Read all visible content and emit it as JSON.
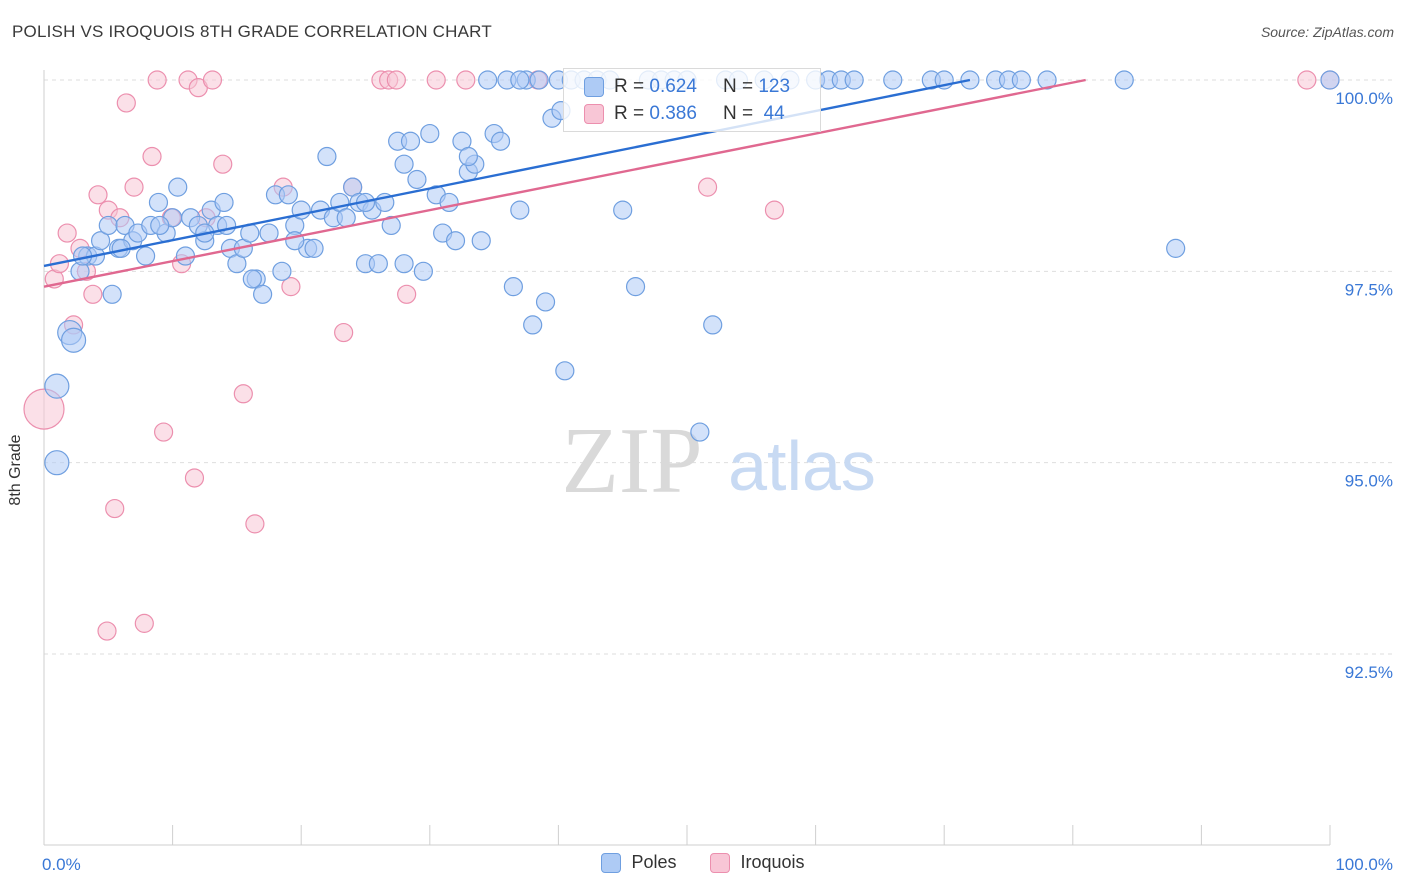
{
  "title": "POLISH VS IROQUOIS 8TH GRADE CORRELATION CHART",
  "source": "Source: ZipAtlas.com",
  "watermark": {
    "zip": "ZIP",
    "atlas": "atlas"
  },
  "stats": {
    "poles": {
      "r_label": "R =",
      "r_value": "0.624",
      "n_label": "N =",
      "n_value": "123"
    },
    "iroquois": {
      "r_label": "R =",
      "r_value": "0.386",
      "n_label": "N =",
      "n_value": "44"
    }
  },
  "chart_data": {
    "type": "scatter",
    "title": "POLISH VS IROQUOIS 8TH GRADE CORRELATION CHART",
    "xlabel": "",
    "ylabel": "8th Grade",
    "xlim": [
      0,
      100
    ],
    "ylim": [
      90.0,
      100.3
    ],
    "x_ticks_labels": [
      "0.0%",
      "100.0%"
    ],
    "y_ticks": [
      92.5,
      95.0,
      97.5,
      100.0
    ],
    "y_tick_labels": [
      "92.5%",
      "95.0%",
      "97.5%",
      "100.0%"
    ],
    "grid": "horizontal dashed",
    "legend_position": "bottom-center",
    "colors": {
      "poles": "#6f9fe0",
      "poles_fill": "#aecbf5",
      "poles_line": "#2a6ed2",
      "iroquois": "#ec8fae",
      "iroquois_fill": "#f8c6d6",
      "iroquois_line": "#e06890"
    },
    "series": [
      {
        "name": "Poles",
        "trend": [
          [
            0,
            97.57
          ],
          [
            72,
            100.0
          ]
        ],
        "points": [
          [
            1.0,
            96.0
          ],
          [
            1.0,
            95.0
          ],
          [
            2.0,
            96.7
          ],
          [
            2.3,
            96.6
          ],
          [
            2.8,
            97.5
          ],
          [
            3.4,
            97.7
          ],
          [
            4.0,
            97.7
          ],
          [
            4.4,
            97.9
          ],
          [
            5.0,
            98.1
          ],
          [
            5.3,
            97.2
          ],
          [
            5.8,
            97.8
          ],
          [
            6.3,
            98.1
          ],
          [
            6.9,
            97.9
          ],
          [
            7.3,
            98.0
          ],
          [
            7.9,
            97.7
          ],
          [
            8.3,
            98.1
          ],
          [
            8.9,
            98.4
          ],
          [
            9.5,
            98.0
          ],
          [
            10.0,
            98.2
          ],
          [
            10.4,
            98.6
          ],
          [
            11.0,
            97.7
          ],
          [
            11.4,
            98.2
          ],
          [
            12.0,
            98.1
          ],
          [
            12.5,
            97.9
          ],
          [
            13.0,
            98.3
          ],
          [
            13.5,
            98.1
          ],
          [
            14.0,
            98.4
          ],
          [
            14.5,
            97.8
          ],
          [
            15.0,
            97.6
          ],
          [
            15.5,
            97.8
          ],
          [
            16.0,
            98.0
          ],
          [
            16.5,
            97.4
          ],
          [
            17.0,
            97.2
          ],
          [
            17.5,
            98.0
          ],
          [
            18.0,
            98.5
          ],
          [
            18.5,
            97.5
          ],
          [
            19.0,
            98.5
          ],
          [
            19.5,
            98.1
          ],
          [
            20.0,
            98.3
          ],
          [
            20.5,
            97.8
          ],
          [
            21.0,
            97.8
          ],
          [
            21.5,
            98.3
          ],
          [
            22.0,
            99.0
          ],
          [
            22.5,
            98.2
          ],
          [
            23.0,
            98.4
          ],
          [
            23.5,
            98.2
          ],
          [
            24.0,
            98.6
          ],
          [
            24.5,
            98.4
          ],
          [
            25.0,
            97.6
          ],
          [
            25.5,
            98.3
          ],
          [
            26.0,
            97.6
          ],
          [
            26.5,
            98.4
          ],
          [
            27.0,
            98.1
          ],
          [
            27.5,
            99.2
          ],
          [
            28.0,
            98.9
          ],
          [
            28.5,
            99.2
          ],
          [
            29.0,
            98.7
          ],
          [
            29.5,
            97.5
          ],
          [
            30.0,
            99.3
          ],
          [
            30.5,
            98.5
          ],
          [
            31.0,
            98.0
          ],
          [
            31.5,
            98.4
          ],
          [
            32.0,
            97.9
          ],
          [
            32.5,
            99.2
          ],
          [
            33.0,
            98.8
          ],
          [
            33.5,
            98.9
          ],
          [
            34.0,
            97.9
          ],
          [
            34.5,
            100.0
          ],
          [
            35.0,
            99.3
          ],
          [
            35.5,
            99.2
          ],
          [
            36.0,
            100.0
          ],
          [
            36.5,
            97.3
          ],
          [
            37.0,
            98.3
          ],
          [
            37.5,
            100.0
          ],
          [
            38.0,
            96.8
          ],
          [
            38.5,
            100.0
          ],
          [
            39.0,
            97.1
          ],
          [
            39.5,
            99.5
          ],
          [
            40.0,
            100.0
          ],
          [
            40.5,
            96.2
          ],
          [
            41.0,
            100.0
          ],
          [
            42.0,
            100.0
          ],
          [
            43.0,
            100.0
          ],
          [
            44.0,
            100.0
          ],
          [
            45.0,
            98.3
          ],
          [
            46.0,
            97.3
          ],
          [
            47.0,
            100.0
          ],
          [
            48.0,
            100.0
          ],
          [
            49.0,
            100.0
          ],
          [
            50.0,
            100.0
          ],
          [
            51.0,
            95.4
          ],
          [
            52.0,
            96.8
          ],
          [
            53.0,
            100.0
          ],
          [
            54.0,
            100.0
          ],
          [
            56.0,
            100.0
          ],
          [
            58.0,
            100.0
          ],
          [
            60.0,
            100.0
          ],
          [
            61.0,
            100.0
          ],
          [
            62.0,
            100.0
          ],
          [
            63.0,
            100.0
          ],
          [
            66.0,
            100.0
          ],
          [
            69.0,
            100.0
          ],
          [
            70.0,
            100.0
          ],
          [
            72.0,
            100.0
          ],
          [
            74.0,
            100.0
          ],
          [
            75.0,
            100.0
          ],
          [
            76.0,
            100.0
          ],
          [
            78.0,
            100.0
          ],
          [
            84.0,
            100.0
          ],
          [
            88.0,
            97.8
          ],
          [
            100.0,
            100.0
          ],
          [
            3.0,
            97.7
          ],
          [
            9.0,
            98.1
          ],
          [
            28.0,
            97.6
          ],
          [
            33.0,
            99.0
          ],
          [
            12.5,
            98.0
          ],
          [
            25.0,
            98.4
          ],
          [
            19.5,
            97.9
          ],
          [
            14.2,
            98.1
          ],
          [
            6.0,
            97.8
          ],
          [
            37.0,
            100.0
          ],
          [
            16.2,
            97.4
          ],
          [
            40.2,
            99.6
          ]
        ]
      },
      {
        "name": "Iroquois",
        "trend": [
          [
            0,
            97.3
          ],
          [
            81,
            100.0
          ]
        ],
        "points": [
          [
            0.0,
            95.7
          ],
          [
            0.8,
            97.4
          ],
          [
            1.2,
            97.6
          ],
          [
            1.8,
            98.0
          ],
          [
            2.3,
            96.8
          ],
          [
            2.8,
            97.8
          ],
          [
            3.3,
            97.5
          ],
          [
            3.8,
            97.2
          ],
          [
            4.2,
            98.5
          ],
          [
            5.0,
            98.3
          ],
          [
            5.5,
            94.4
          ],
          [
            5.9,
            98.2
          ],
          [
            6.4,
            99.7
          ],
          [
            7.0,
            98.6
          ],
          [
            7.8,
            92.9
          ],
          [
            8.4,
            99.0
          ],
          [
            8.8,
            100.0
          ],
          [
            9.3,
            95.4
          ],
          [
            9.9,
            98.2
          ],
          [
            10.7,
            97.6
          ],
          [
            11.2,
            100.0
          ],
          [
            11.7,
            94.8
          ],
          [
            12.0,
            99.9
          ],
          [
            12.6,
            98.2
          ],
          [
            13.1,
            100.0
          ],
          [
            13.9,
            98.9
          ],
          [
            15.5,
            95.9
          ],
          [
            16.4,
            94.2
          ],
          [
            18.6,
            98.6
          ],
          [
            19.2,
            97.3
          ],
          [
            23.3,
            96.7
          ],
          [
            24.0,
            98.6
          ],
          [
            26.2,
            100.0
          ],
          [
            26.8,
            100.0
          ],
          [
            27.4,
            100.0
          ],
          [
            28.2,
            97.2
          ],
          [
            30.5,
            100.0
          ],
          [
            32.8,
            100.0
          ],
          [
            38.4,
            100.0
          ],
          [
            51.6,
            98.6
          ],
          [
            56.8,
            98.3
          ],
          [
            98.2,
            100.0
          ],
          [
            100.0,
            100.0
          ],
          [
            4.9,
            92.8
          ]
        ]
      }
    ]
  },
  "legend": {
    "poles": "Poles",
    "iroquois": "Iroquois"
  }
}
